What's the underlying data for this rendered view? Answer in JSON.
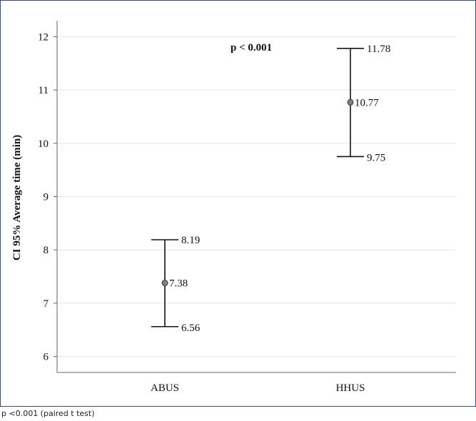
{
  "chart_data": {
    "type": "errorbar",
    "categories": [
      "ABUS",
      "HHUS"
    ],
    "series": [
      {
        "points": [
          {
            "category": "ABUS",
            "mean": 7.38,
            "lower": 6.56,
            "upper": 8.19
          },
          {
            "category": "HHUS",
            "mean": 10.77,
            "lower": 9.75,
            "upper": 11.78
          }
        ]
      }
    ],
    "data_labels": {
      "ABUS": {
        "upper": "8.19",
        "mean": "7.38",
        "lower": "6.56"
      },
      "HHUS": {
        "upper": "11.78",
        "mean": "10.77",
        "lower": "9.75"
      }
    },
    "ylabel": "CI 95% Average time (min)",
    "xlabel": "",
    "ylim": [
      5.7,
      12.3
    ],
    "yticks": [
      "6",
      "7",
      "8",
      "9",
      "10",
      "11",
      "12"
    ],
    "annotation": "p < 0.001",
    "grid": true,
    "colors": {
      "marker_fill": "#808080",
      "marker_stroke": "#333333",
      "line": "#111111",
      "grid": "#e6e6e6",
      "frame_border": "#3c4a6b"
    }
  },
  "caption": "p <0.001 (paired t test)"
}
